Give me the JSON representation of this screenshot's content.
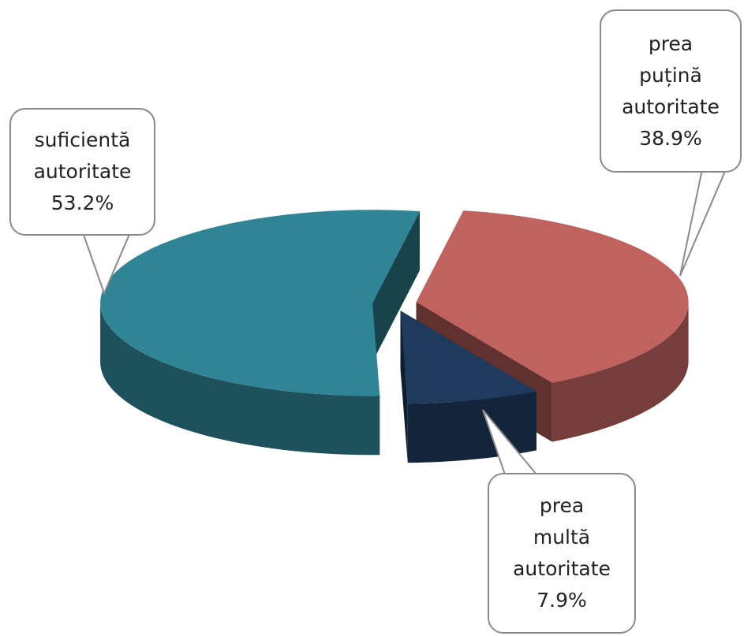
{
  "chart_data": {
    "type": "pie",
    "categories": [
      "prea puțină autoritate",
      "prea multă autoritate",
      "suficientă autoritate"
    ],
    "values": [
      38.9,
      7.9,
      53.2
    ],
    "value_labels": [
      "38.9%",
      "7.9%",
      "53.2%"
    ],
    "colors": [
      "#c0625e",
      "#1e3b5e",
      "#2f8596"
    ]
  }
}
